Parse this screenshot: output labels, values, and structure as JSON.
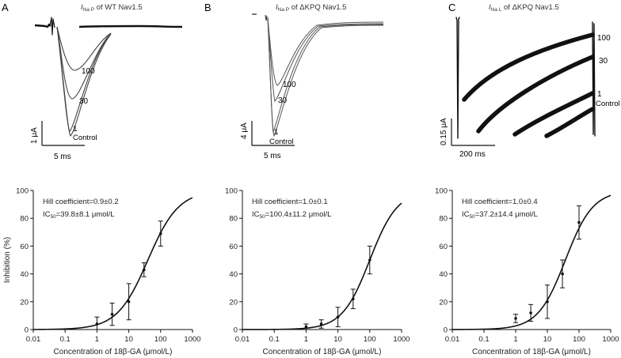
{
  "figure": {
    "panels": [
      {
        "letter": "A",
        "title_main": "I",
        "title_sub": "Na P",
        "title_rest": " of WT Nav1.5",
        "trace_labels": [
          "100",
          "30",
          "1",
          "Control"
        ],
        "scale_y": "1 μA",
        "scale_x": "5 ms"
      },
      {
        "letter": "B",
        "title_main": "I",
        "title_sub": "Na P",
        "title_rest": " of ΔKPQ Nav1.5",
        "trace_labels": [
          "100",
          "30",
          "1",
          "Control"
        ],
        "scale_y": "4 μA",
        "scale_x": "5 ms"
      },
      {
        "letter": "C",
        "title_main": "I",
        "title_sub": "Na L",
        "title_rest": " of ΔKPQ Nav1.5",
        "trace_labels": [
          "100",
          "30",
          "1",
          "Control"
        ],
        "scale_y": "0.15 μA",
        "scale_x": "200 ms"
      }
    ]
  },
  "chart_data": [
    {
      "type": "scatter",
      "xlabel": "Concentration of 18β-GA (μmol/L)",
      "ylabel": "Inhibition (%)",
      "xscale": "log",
      "xlim": [
        0.01,
        1000
      ],
      "ylim": [
        0,
        100
      ],
      "xticks": [
        "0.01",
        "0.1",
        "1",
        "10",
        "100",
        "1000"
      ],
      "yticks": [
        "0",
        "20",
        "40",
        "60",
        "80",
        "100"
      ],
      "annot_hill": "Hill coefficient=0.9±0.2",
      "annot_ic_prefix": "IC",
      "annot_ic_sub": "50",
      "annot_ic_value": "=39.8±8.1 μmol/L",
      "hill": 0.9,
      "ic50": 39.8,
      "points": [
        {
          "x": 1,
          "y": 4,
          "err": 5
        },
        {
          "x": 3,
          "y": 11,
          "err": 8
        },
        {
          "x": 10,
          "y": 20,
          "err": 13
        },
        {
          "x": 30,
          "y": 43,
          "err": 5
        },
        {
          "x": 100,
          "y": 69,
          "err": 9
        }
      ]
    },
    {
      "type": "scatter",
      "xlabel": "Concentration of 18β-GA (μmol/L)",
      "ylabel": "",
      "xscale": "log",
      "xlim": [
        0.01,
        1000
      ],
      "ylim": [
        0,
        100
      ],
      "xticks": [
        "0.01",
        "0.1",
        "1",
        "10",
        "100",
        "1000"
      ],
      "yticks": [
        "0",
        "20",
        "40",
        "60",
        "80",
        "100"
      ],
      "annot_hill": "Hill coefficient=1.0±0.1",
      "annot_ic_prefix": "IC",
      "annot_ic_sub": "50",
      "annot_ic_value": "=100.4±11.2 μmol/L",
      "hill": 1.0,
      "ic50": 100.4,
      "points": [
        {
          "x": 1,
          "y": 2,
          "err": 2
        },
        {
          "x": 3,
          "y": 4,
          "err": 3
        },
        {
          "x": 10,
          "y": 9,
          "err": 7
        },
        {
          "x": 30,
          "y": 22,
          "err": 7
        },
        {
          "x": 100,
          "y": 50,
          "err": 10
        }
      ]
    },
    {
      "type": "scatter",
      "xlabel": "Concentration of 18β-GA (μmol/L)",
      "ylabel": "",
      "xscale": "log",
      "xlim": [
        0.01,
        1000
      ],
      "ylim": [
        0,
        100
      ],
      "xticks": [
        "0.01",
        "0.1",
        "1",
        "10",
        "100",
        "1000"
      ],
      "yticks": [
        "0",
        "20",
        "40",
        "60",
        "80",
        "100"
      ],
      "annot_hill": "Hill coefficient=1.0±0.4",
      "annot_ic_prefix": "IC",
      "annot_ic_sub": "50",
      "annot_ic_value": "=37.2±14.4 μmol/L",
      "hill": 1.0,
      "ic50": 37.2,
      "points": [
        {
          "x": 1,
          "y": 8,
          "err": 3
        },
        {
          "x": 3,
          "y": 12,
          "err": 6
        },
        {
          "x": 10,
          "y": 20,
          "err": 12
        },
        {
          "x": 30,
          "y": 40,
          "err": 10
        },
        {
          "x": 100,
          "y": 77,
          "err": 12
        }
      ]
    }
  ]
}
